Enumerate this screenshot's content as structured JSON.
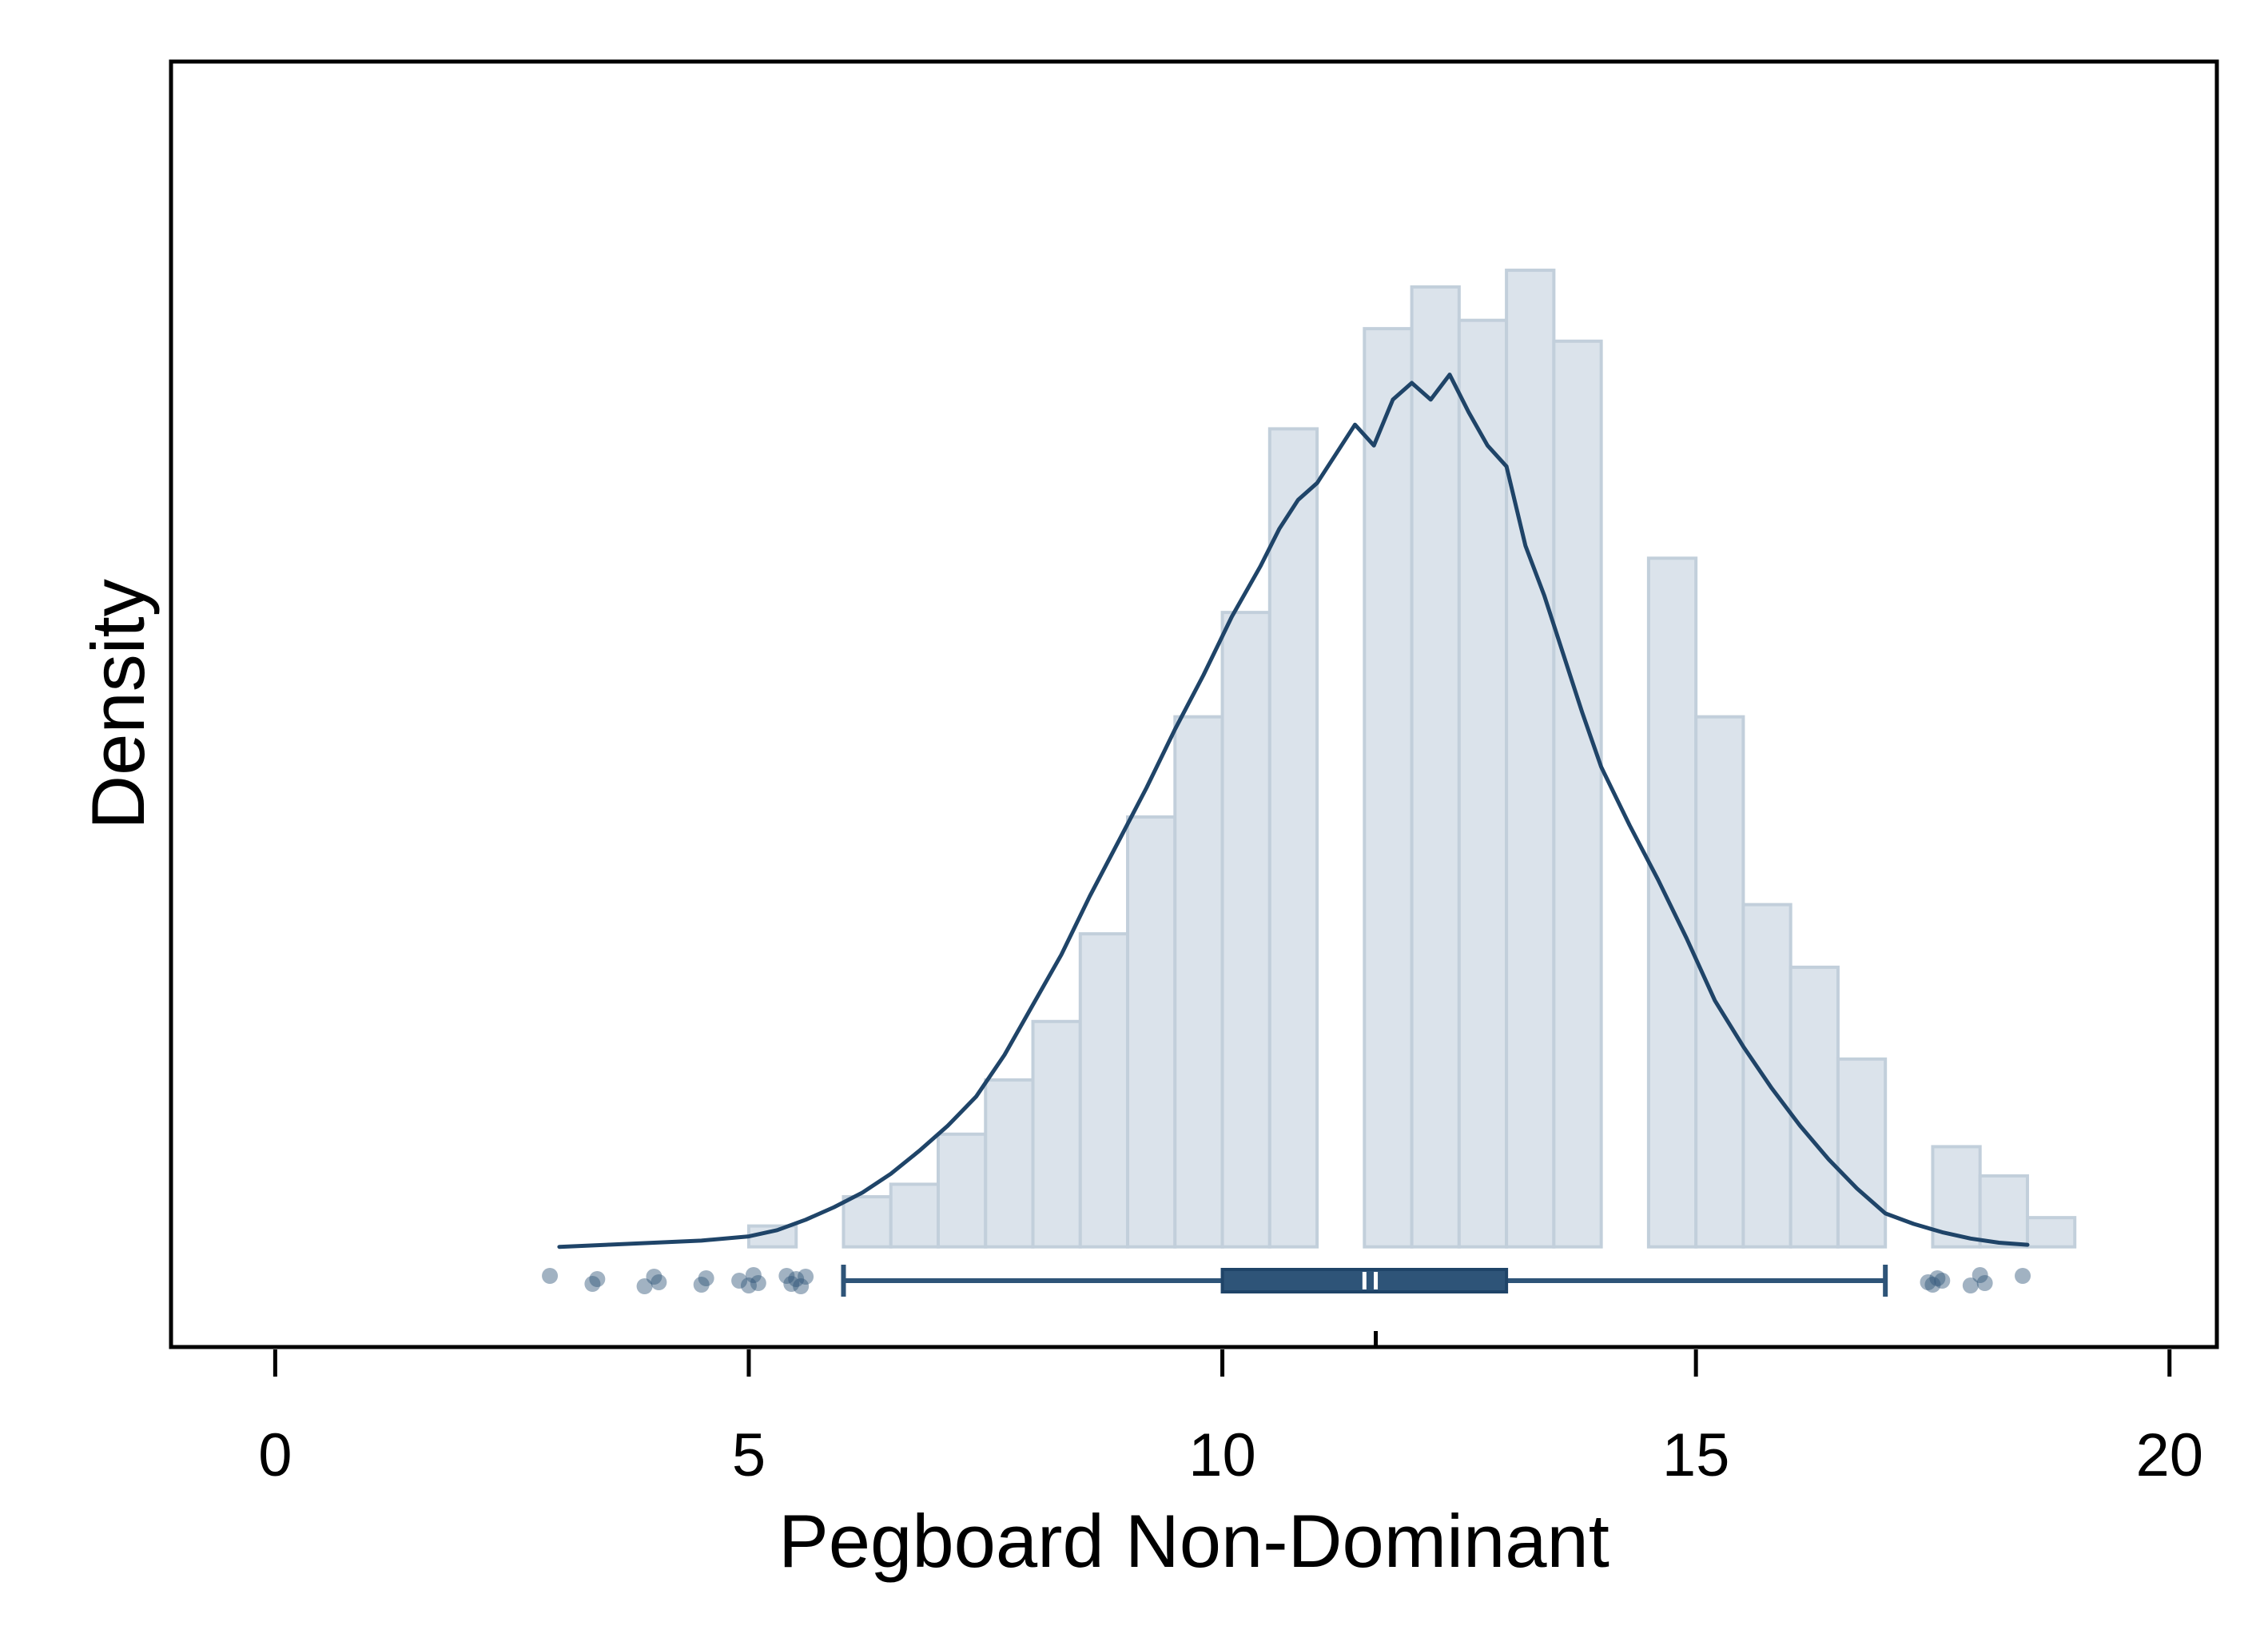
{
  "chart_data": {
    "type": "bar",
    "title": "",
    "xlabel": "Pegboard Non-Dominant",
    "ylabel": "Density",
    "xlim": [
      -1.1,
      20.5
    ],
    "ylim": [
      -0.024,
      0.284
    ],
    "x_ticks": [
      0,
      5,
      10,
      15,
      20
    ],
    "x_tick_labels": [
      "0",
      "5",
      "10",
      "15",
      "20"
    ],
    "y_ticks_shown": false,
    "grid": false,
    "colors": {
      "bar_fill": "#dbe3eb",
      "bar_stroke": "#c2cfdb",
      "line": "#1f4468",
      "box": "#2e5478",
      "points": "#2e5478"
    },
    "histogram": {
      "bin_width": 0.5,
      "bins": [
        {
          "start": 5.0,
          "density": 0.005
        },
        {
          "start": 5.5,
          "density": 0.0
        },
        {
          "start": 6.0,
          "density": 0.012
        },
        {
          "start": 6.5,
          "density": 0.015
        },
        {
          "start": 7.0,
          "density": 0.027
        },
        {
          "start": 7.5,
          "density": 0.04
        },
        {
          "start": 8.0,
          "density": 0.054
        },
        {
          "start": 8.5,
          "density": 0.075
        },
        {
          "start": 9.0,
          "density": 0.103
        },
        {
          "start": 9.5,
          "density": 0.127
        },
        {
          "start": 10.0,
          "density": 0.152
        },
        {
          "start": 10.5,
          "density": 0.196
        },
        {
          "start": 11.0,
          "density": 0.0
        },
        {
          "start": 11.5,
          "density": 0.22
        },
        {
          "start": 12.0,
          "density": 0.23
        },
        {
          "start": 12.5,
          "density": 0.222
        },
        {
          "start": 13.0,
          "density": 0.234
        },
        {
          "start": 13.5,
          "density": 0.217
        },
        {
          "start": 14.0,
          "density": 0.0
        },
        {
          "start": 14.5,
          "density": 0.165
        },
        {
          "start": 15.0,
          "density": 0.127
        },
        {
          "start": 15.5,
          "density": 0.082
        },
        {
          "start": 16.0,
          "density": 0.067
        },
        {
          "start": 16.5,
          "density": 0.045
        },
        {
          "start": 17.0,
          "density": 0.0
        },
        {
          "start": 17.5,
          "density": 0.024
        },
        {
          "start": 18.0,
          "density": 0.017
        },
        {
          "start": 18.5,
          "density": 0.007
        }
      ]
    },
    "density_curve": {
      "x": [
        3.0,
        3.5,
        4.0,
        4.5,
        5.0,
        5.3,
        5.6,
        5.9,
        6.2,
        6.5,
        6.8,
        7.1,
        7.4,
        7.7,
        8.0,
        8.3,
        8.6,
        8.9,
        9.2,
        9.5,
        9.8,
        10.1,
        10.4,
        10.6,
        10.8,
        11.0,
        11.2,
        11.4,
        11.6,
        11.8,
        12.0,
        12.2,
        12.4,
        12.6,
        12.8,
        13.0,
        13.2,
        13.4,
        13.6,
        13.8,
        14.0,
        14.3,
        14.6,
        14.9,
        15.2,
        15.5,
        15.8,
        16.1,
        16.4,
        16.7,
        17.0,
        17.3,
        17.6,
        17.9,
        18.2,
        18.5
      ],
      "y": [
        0.0,
        0.0005,
        0.001,
        0.0015,
        0.0025,
        0.004,
        0.0065,
        0.0095,
        0.013,
        0.0175,
        0.023,
        0.029,
        0.036,
        0.046,
        0.058,
        0.07,
        0.084,
        0.097,
        0.11,
        0.124,
        0.137,
        0.151,
        0.163,
        0.172,
        0.179,
        0.183,
        0.19,
        0.197,
        0.192,
        0.203,
        0.207,
        0.203,
        0.209,
        0.2,
        0.192,
        0.187,
        0.168,
        0.156,
        0.142,
        0.128,
        0.115,
        0.101,
        0.088,
        0.074,
        0.059,
        0.048,
        0.038,
        0.029,
        0.021,
        0.014,
        0.008,
        0.0055,
        0.0035,
        0.002,
        0.001,
        0.0005
      ]
    },
    "boxplot": {
      "whisker_low": 6.0,
      "q1": 10.0,
      "median": 11.5,
      "mean": 11.62,
      "q3": 13.0,
      "whisker_high": 17.0,
      "outliers": [
        2.9,
        3.35,
        3.4,
        3.9,
        4.0,
        4.05,
        4.5,
        4.55,
        4.9,
        5.0,
        5.05,
        5.1,
        5.4,
        5.45,
        5.5,
        5.55,
        5.6,
        17.45,
        17.5,
        17.55,
        17.6,
        17.9,
        18.0,
        18.05,
        18.45
      ]
    }
  }
}
